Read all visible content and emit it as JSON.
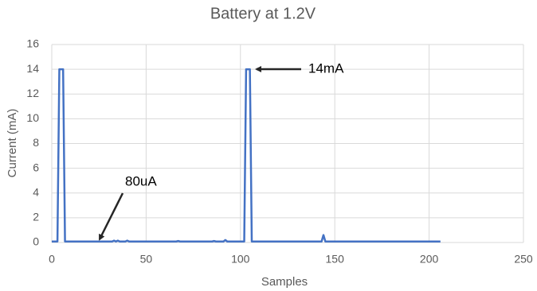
{
  "chart_data": {
    "type": "line",
    "title": "Battery at 1.2V",
    "x_label": "Samples",
    "y_label": "Current (mA)",
    "x": [
      0,
      3,
      4,
      6,
      7,
      32,
      33,
      34,
      35,
      36,
      39,
      40,
      41,
      66,
      67,
      68,
      85,
      86,
      87,
      91,
      92,
      93,
      102,
      103,
      105,
      106,
      143,
      144,
      145,
      206
    ],
    "values": [
      0.08,
      0.08,
      14,
      14,
      0.08,
      0.08,
      0.15,
      0.08,
      0.15,
      0.08,
      0.08,
      0.15,
      0.08,
      0.08,
      0.12,
      0.08,
      0.08,
      0.12,
      0.08,
      0.08,
      0.2,
      0.08,
      0.08,
      14,
      14,
      0.08,
      0.08,
      0.6,
      0.08,
      0.08
    ],
    "color": "#4472c4",
    "xlim": [
      0,
      250
    ],
    "xticks": [
      0,
      50,
      100,
      150,
      200,
      250
    ],
    "ylim": [
      0,
      16
    ],
    "yticks": [
      0,
      2,
      4,
      6,
      8,
      10,
      12,
      14,
      16
    ],
    "grid": true,
    "annotations": [
      "80uA",
      "14mA"
    ]
  }
}
